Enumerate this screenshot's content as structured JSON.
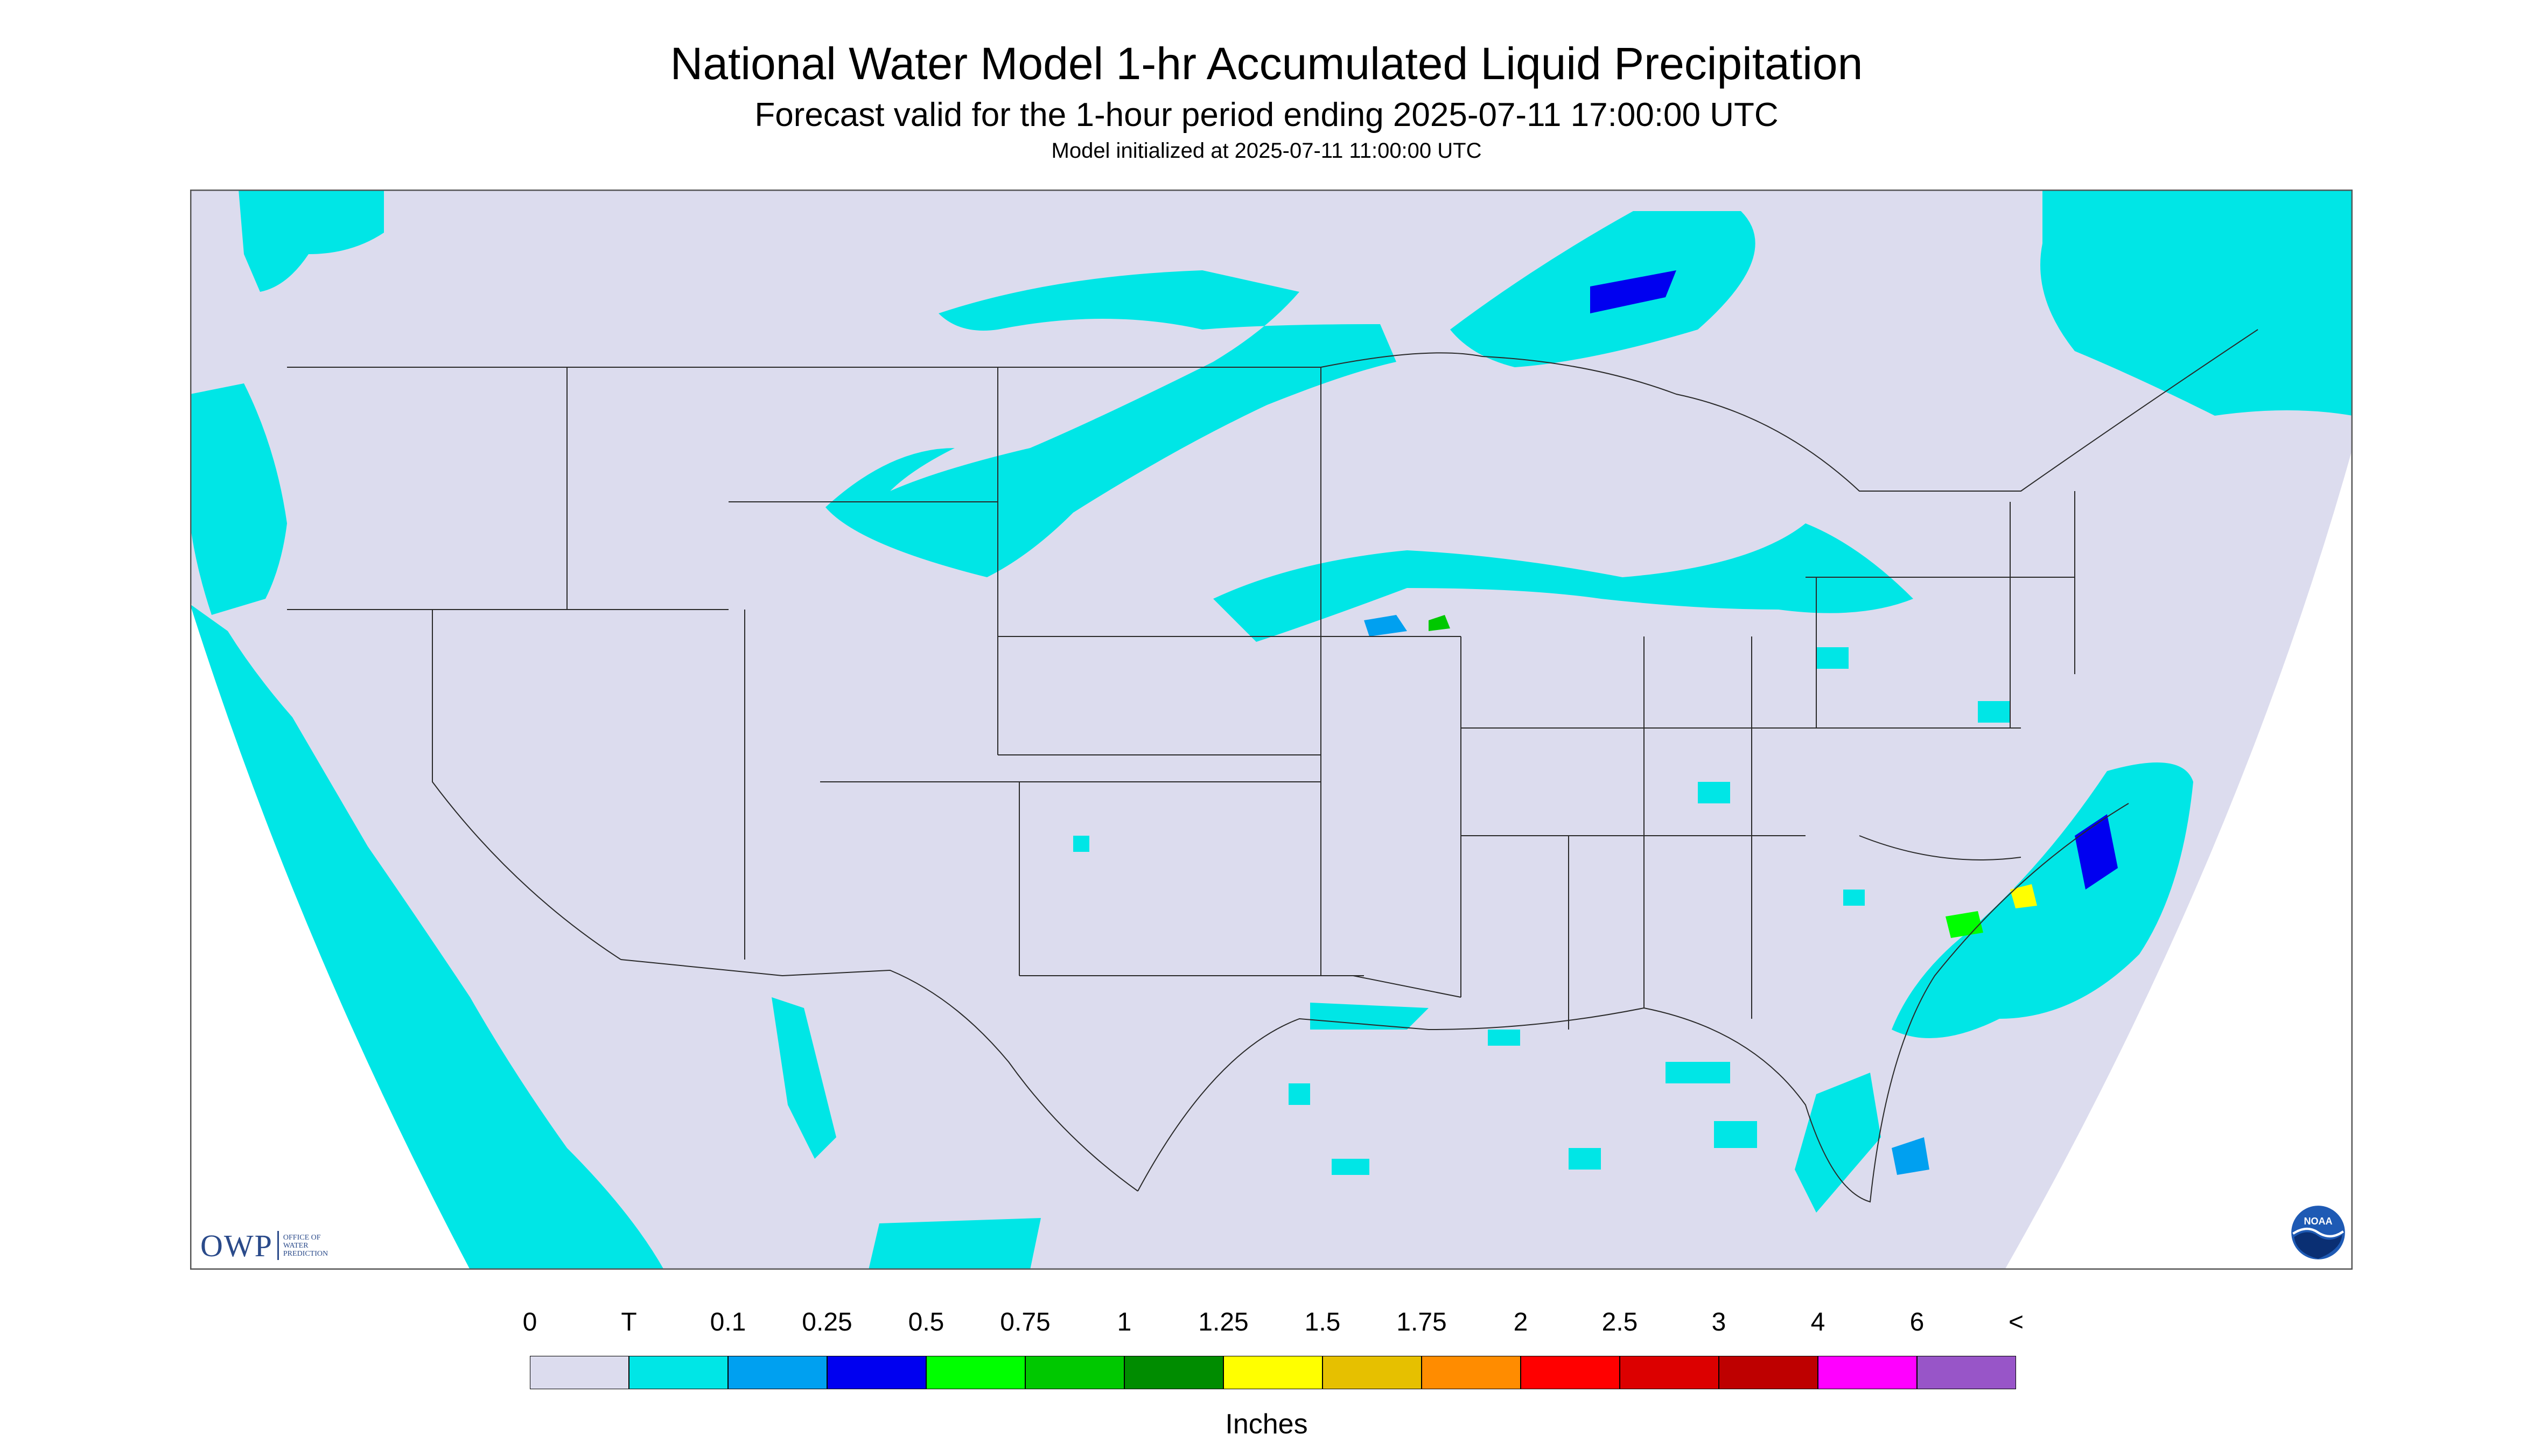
{
  "header": {
    "title": "National Water Model 1-hr Accumulated Liquid Precipitation",
    "subtitle": "Forecast valid for the 1-hour period ending 2025-07-11 17:00:00 UTC",
    "init_line": "Model initialized at 2025-07-11 11:00:00 UTC"
  },
  "legend": {
    "labels": [
      "0",
      "T",
      "0.1",
      "0.25",
      "0.5",
      "0.75",
      "1",
      "1.25",
      "1.5",
      "1.75",
      "2",
      "2.5",
      "3",
      "4",
      "6",
      "<"
    ],
    "colors": [
      "#dcdcee",
      "#00e6e6",
      "#00a0f0",
      "#0000f0",
      "#00ff00",
      "#00c800",
      "#008c00",
      "#ffff00",
      "#e6c000",
      "#ff8c00",
      "#ff0000",
      "#dc0000",
      "#be0000",
      "#ff00ff",
      "#9855c8"
    ],
    "units": "Inches"
  },
  "logos": {
    "owp_mark": "OWP",
    "owp_text": [
      "OFFICE OF",
      "WATER",
      "PREDICTION"
    ],
    "noaa_text": "NOAA"
  },
  "colors": {
    "no_data": "#dcdcee",
    "trace": "#00e6e6",
    "boundary": "#2a2a2a"
  }
}
